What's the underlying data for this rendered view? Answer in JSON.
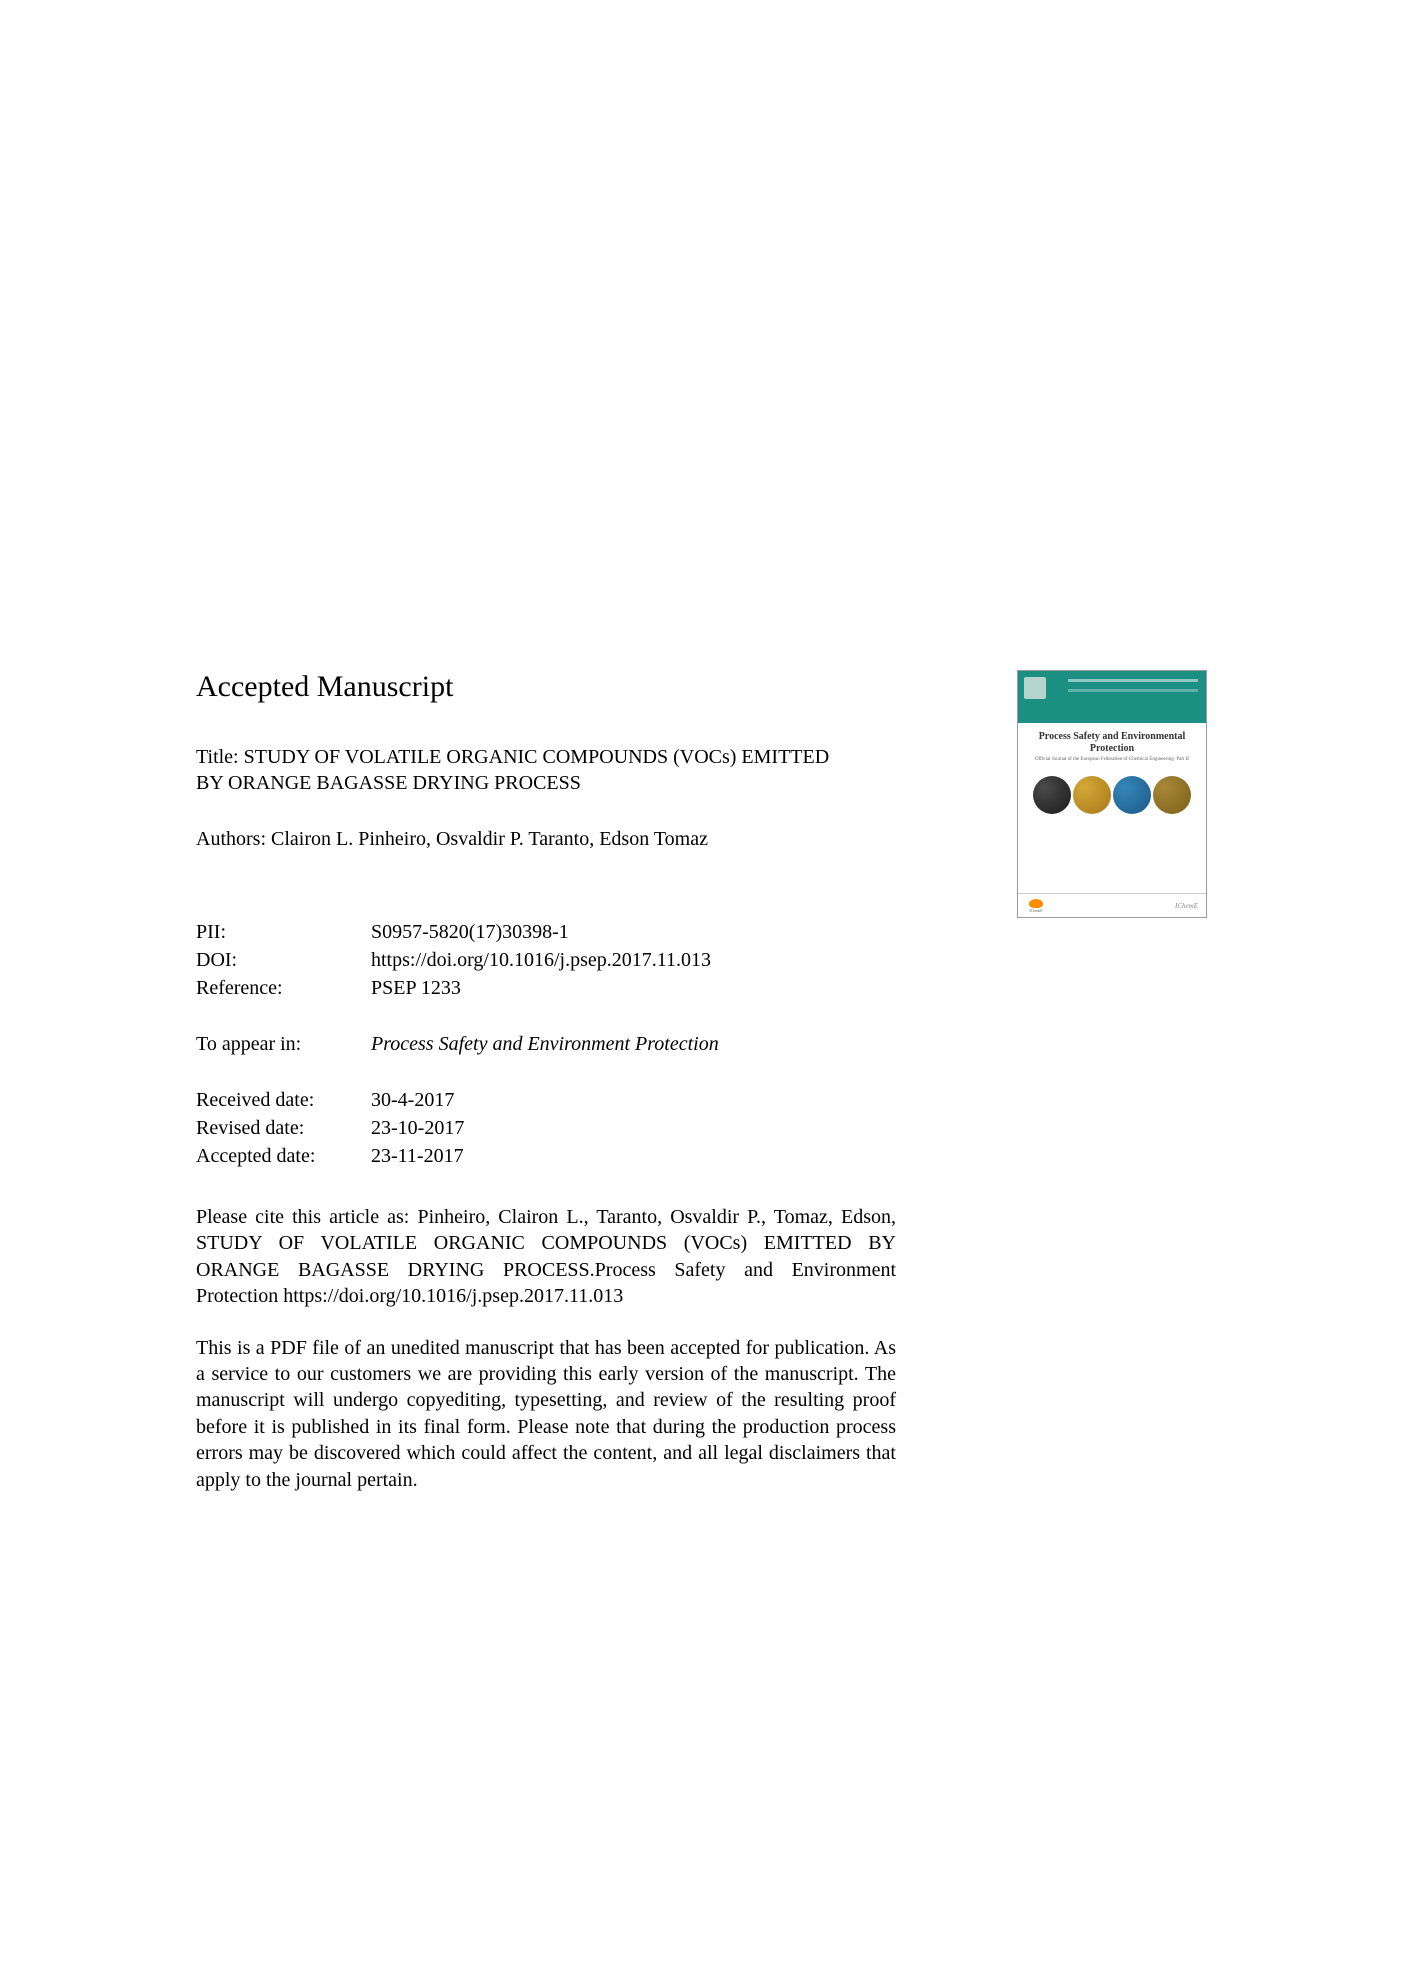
{
  "heading": "Accepted Manuscript",
  "title_prefix": "Title: ",
  "title": "STUDY OF VOLATILE ORGANIC COMPOUNDS (VOCs) EMITTED BY ORANGE BAGASSE DRYING PROCESS",
  "authors_prefix": "Authors: ",
  "authors": "Clairon L. Pinheiro, Osvaldir P. Taranto, Edson Tomaz",
  "metadata": {
    "pii_label": "PII:",
    "pii_value": "S0957-5820(17)30398-1",
    "doi_label": "DOI:",
    "doi_value": "https://doi.org/10.1016/j.psep.2017.11.013",
    "reference_label": "Reference:",
    "reference_value": "PSEP 1233",
    "appear_label": "To appear in:",
    "appear_value": "Process Safety and Environment Protection",
    "received_label": "Received date:",
    "received_value": "30-4-2017",
    "revised_label": "Revised date:",
    "revised_value": "23-10-2017",
    "accepted_label": "Accepted date:",
    "accepted_value": "23-11-2017"
  },
  "citation": "Please cite this article as: Pinheiro, Clairon L., Taranto, Osvaldir P., Tomaz, Edson, STUDY OF VOLATILE ORGANIC COMPOUNDS (VOCs) EMITTED BY ORANGE BAGASSE DRYING PROCESS.Process Safety and Environment Protection https://doi.org/10.1016/j.psep.2017.11.013",
  "disclaimer": "This is a PDF file of an unedited manuscript that has been accepted for publication. As a service to our customers we are providing this early version of the manuscript. The manuscript will undergo copyediting, typesetting, and review of the resulting proof before it is published in its final form. Please note that during the production process errors may be discovered which could affect the content, and all legal disclaimers that apply to the journal pertain.",
  "cover": {
    "journal_title": "Process Safety and Environmental Protection",
    "subtitle": "Official Journal of the European Federation of Chemical Engineering: Part B",
    "publisher_left": "IChemE",
    "publisher_right": "IChemE",
    "colors": {
      "header": "#1a8f82",
      "circle1": "#1a1a1a",
      "circle2": "#a77818",
      "circle3": "#1a5a88",
      "circle4": "#7a6018"
    }
  }
}
